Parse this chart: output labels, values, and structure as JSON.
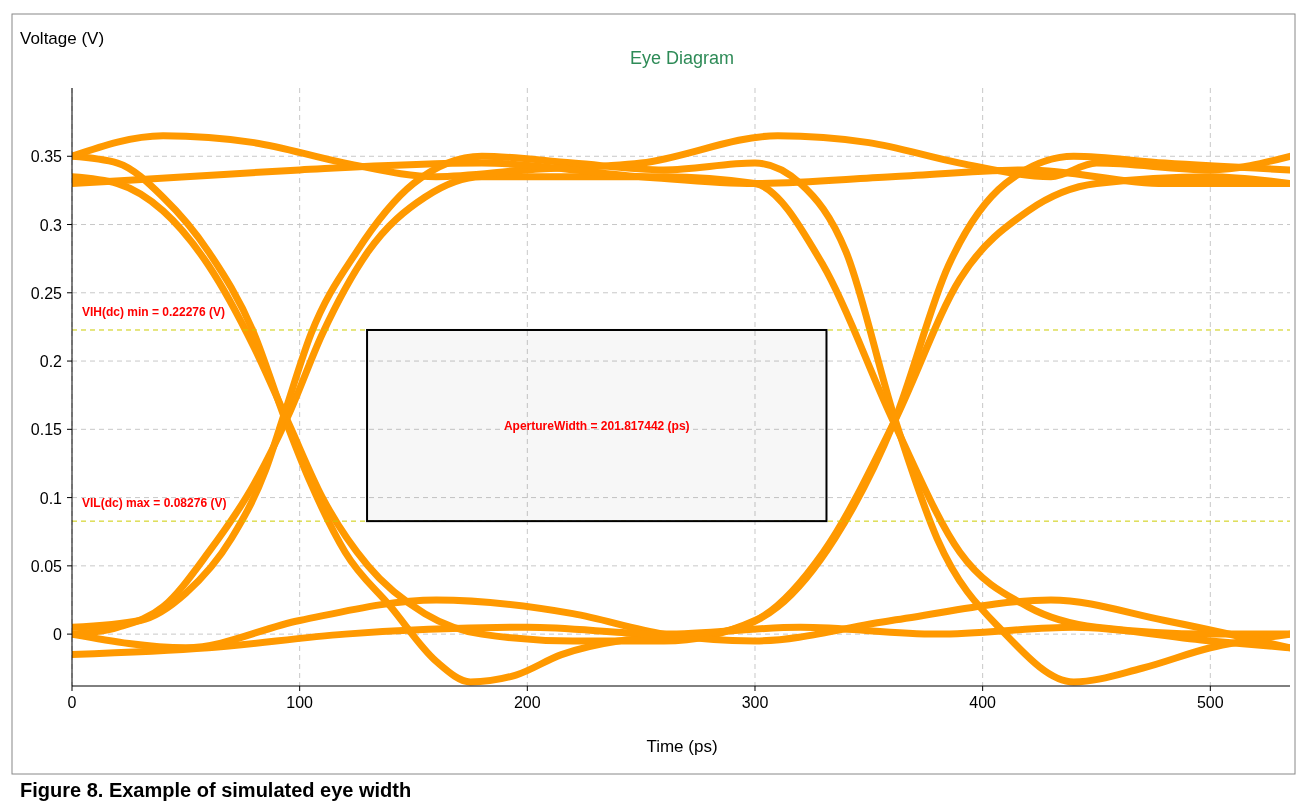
{
  "chart_data": {
    "type": "line",
    "title": "Eye Diagram",
    "xlabel": "Time (ps)",
    "ylabel": "Voltage (V)",
    "xlim": [
      0,
      535
    ],
    "ylim": [
      -0.038,
      0.4
    ],
    "xticks": [
      0,
      100,
      200,
      300,
      400,
      500
    ],
    "yticks": [
      0,
      0.05,
      0.1,
      0.15,
      0.2,
      0.25,
      0.3,
      0.35
    ],
    "grid": true,
    "marker": "none",
    "line_style": "solid",
    "series": [
      {
        "color": "#ff9900",
        "x": [
          0,
          20,
          40,
          60,
          80,
          95,
          110,
          130,
          155,
          180,
          220,
          260,
          300,
          330,
          361,
          390,
          420,
          450,
          500,
          535
        ],
        "values": [
          0.335,
          0.33,
          0.31,
          0.27,
          0.21,
          0.155,
          0.1,
          0.05,
          0.015,
          0,
          -0.005,
          -0.005,
          0.01,
          0.06,
          0.155,
          0.26,
          0.31,
          0.33,
          0.335,
          0.33
        ]
      },
      {
        "color": "#ff9900",
        "x": [
          0,
          20,
          40,
          60,
          80,
          95,
          110,
          130,
          155,
          180,
          220,
          260,
          300,
          330,
          361,
          390,
          420,
          450,
          500,
          535
        ],
        "values": [
          0,
          0.005,
          0.02,
          0.06,
          0.11,
          0.16,
          0.22,
          0.28,
          0.32,
          0.335,
          0.335,
          0.335,
          0.33,
          0.27,
          0.155,
          0.06,
          0.02,
          0.005,
          0,
          0
        ]
      },
      {
        "color": "#ff9900",
        "x": [
          0,
          20,
          40,
          60,
          80,
          93,
          105,
          120,
          140,
          160,
          175,
          195,
          215,
          240,
          280,
          310,
          335,
          361,
          385,
          410,
          440,
          480,
          535
        ],
        "values": [
          0.35,
          0.345,
          0.32,
          0.28,
          0.22,
          0.16,
          0.11,
          0.06,
          0.02,
          -0.02,
          -0.035,
          -0.03,
          -0.015,
          -0.005,
          0,
          0.02,
          0.07,
          0.155,
          0.27,
          0.33,
          0.35,
          0.345,
          0.34
        ]
      },
      {
        "color": "#ff9900",
        "x": [
          0,
          30,
          50,
          70,
          85,
          93,
          105,
          125,
          150,
          180,
          220,
          260,
          300,
          320,
          340,
          361,
          380,
          410,
          440,
          470,
          500,
          535
        ],
        "values": [
          0.005,
          0.01,
          0.03,
          0.07,
          0.12,
          0.16,
          0.22,
          0.28,
          0.33,
          0.35,
          0.345,
          0.34,
          0.345,
          0.33,
          0.28,
          0.16,
          0.07,
          0,
          -0.035,
          -0.025,
          -0.01,
          0
        ]
      },
      {
        "color": "#ff9900",
        "x": [
          0,
          40,
          80,
          120,
          160,
          200,
          250,
          310,
          350,
          390,
          430,
          450,
          500,
          535
        ],
        "values": [
          0.35,
          0.365,
          0.36,
          0.345,
          0.335,
          0.34,
          0.345,
          0.365,
          0.36,
          0.345,
          0.335,
          0.345,
          0.34,
          0.35
        ]
      },
      {
        "color": "#ff9900",
        "x": [
          0,
          50,
          100,
          180,
          250,
          300,
          360,
          420,
          480,
          535
        ],
        "values": [
          0.33,
          0.335,
          0.34,
          0.345,
          0.335,
          0.33,
          0.335,
          0.34,
          0.33,
          0.33
        ]
      },
      {
        "color": "#ff9900",
        "x": [
          0,
          50,
          100,
          160,
          220,
          260,
          300,
          360,
          430,
          480,
          535
        ],
        "values": [
          0,
          -0.01,
          0.01,
          0.025,
          0.015,
          0,
          -0.005,
          0.01,
          0.025,
          0.01,
          -0.01
        ]
      },
      {
        "color": "#ff9900",
        "x": [
          0,
          60,
          120,
          200,
          260,
          320,
          380,
          440,
          500,
          535
        ],
        "values": [
          -0.015,
          -0.01,
          0,
          0.005,
          0,
          0.005,
          0,
          0.005,
          -0.005,
          -0.01
        ]
      }
    ],
    "ref_lines": [
      {
        "axis": "y",
        "value": 0.22276,
        "label": "VIH(dc) min = 0.22276 (V)",
        "color": "#cccc00",
        "line_style": "dashed"
      },
      {
        "axis": "y",
        "value": 0.08276,
        "label": "VIL(dc) max = 0.08276 (V)",
        "color": "#cccc00",
        "line_style": "dashed"
      }
    ],
    "bands": [
      {
        "axis": "x",
        "from": 129.6,
        "to": 331.4,
        "label": "ApertureWidth = 201.817442 (ps)",
        "color": "#000000"
      }
    ],
    "annotations": [
      "Figure 8.  Example of simulated eye width"
    ]
  }
}
